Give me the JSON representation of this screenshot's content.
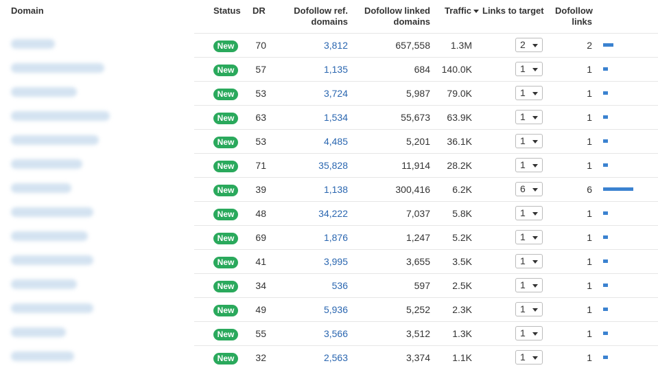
{
  "headers": {
    "domain": "Domain",
    "status": "Status",
    "dr": "DR",
    "ref_domains_1": "Dofollow ref.",
    "ref_domains_2": "domains",
    "linked_domains_1": "Dofollow linked",
    "linked_domains_2": "domains",
    "traffic": "Traffic",
    "links_to_target": "Links to target",
    "dofollow_links_1": "Dofollow",
    "dofollow_links_2": "links"
  },
  "accent_color": "#2a66b0",
  "badge_color": "#2aa95c",
  "bar_color": "#3b82d0",
  "rows": [
    {
      "status": "New",
      "dr": "70",
      "ref_domains": "3,812",
      "linked_domains": "657,558",
      "traffic": "1.3M",
      "links_to_target": "2",
      "dofollow_links": "2"
    },
    {
      "status": "New",
      "dr": "57",
      "ref_domains": "1,135",
      "linked_domains": "684",
      "traffic": "140.0K",
      "links_to_target": "1",
      "dofollow_links": "1"
    },
    {
      "status": "New",
      "dr": "53",
      "ref_domains": "3,724",
      "linked_domains": "5,987",
      "traffic": "79.0K",
      "links_to_target": "1",
      "dofollow_links": "1"
    },
    {
      "status": "New",
      "dr": "63",
      "ref_domains": "1,534",
      "linked_domains": "55,673",
      "traffic": "63.9K",
      "links_to_target": "1",
      "dofollow_links": "1"
    },
    {
      "status": "New",
      "dr": "53",
      "ref_domains": "4,485",
      "linked_domains": "5,201",
      "traffic": "36.1K",
      "links_to_target": "1",
      "dofollow_links": "1"
    },
    {
      "status": "New",
      "dr": "71",
      "ref_domains": "35,828",
      "linked_domains": "11,914",
      "traffic": "28.2K",
      "links_to_target": "1",
      "dofollow_links": "1"
    },
    {
      "status": "New",
      "dr": "39",
      "ref_domains": "1,138",
      "linked_domains": "300,416",
      "traffic": "6.2K",
      "links_to_target": "6",
      "dofollow_links": "6"
    },
    {
      "status": "New",
      "dr": "48",
      "ref_domains": "34,222",
      "linked_domains": "7,037",
      "traffic": "5.8K",
      "links_to_target": "1",
      "dofollow_links": "1"
    },
    {
      "status": "New",
      "dr": "69",
      "ref_domains": "1,876",
      "linked_domains": "1,247",
      "traffic": "5.2K",
      "links_to_target": "1",
      "dofollow_links": "1"
    },
    {
      "status": "New",
      "dr": "41",
      "ref_domains": "3,995",
      "linked_domains": "3,655",
      "traffic": "3.5K",
      "links_to_target": "1",
      "dofollow_links": "1"
    },
    {
      "status": "New",
      "dr": "34",
      "ref_domains": "536",
      "linked_domains": "597",
      "traffic": "2.5K",
      "links_to_target": "1",
      "dofollow_links": "1"
    },
    {
      "status": "New",
      "dr": "49",
      "ref_domains": "5,936",
      "linked_domains": "5,252",
      "traffic": "2.3K",
      "links_to_target": "1",
      "dofollow_links": "1"
    },
    {
      "status": "New",
      "dr": "55",
      "ref_domains": "3,566",
      "linked_domains": "3,512",
      "traffic": "1.3K",
      "links_to_target": "1",
      "dofollow_links": "1"
    },
    {
      "status": "New",
      "dr": "32",
      "ref_domains": "2,563",
      "linked_domains": "3,374",
      "traffic": "1.1K",
      "links_to_target": "1",
      "dofollow_links": "1"
    }
  ]
}
